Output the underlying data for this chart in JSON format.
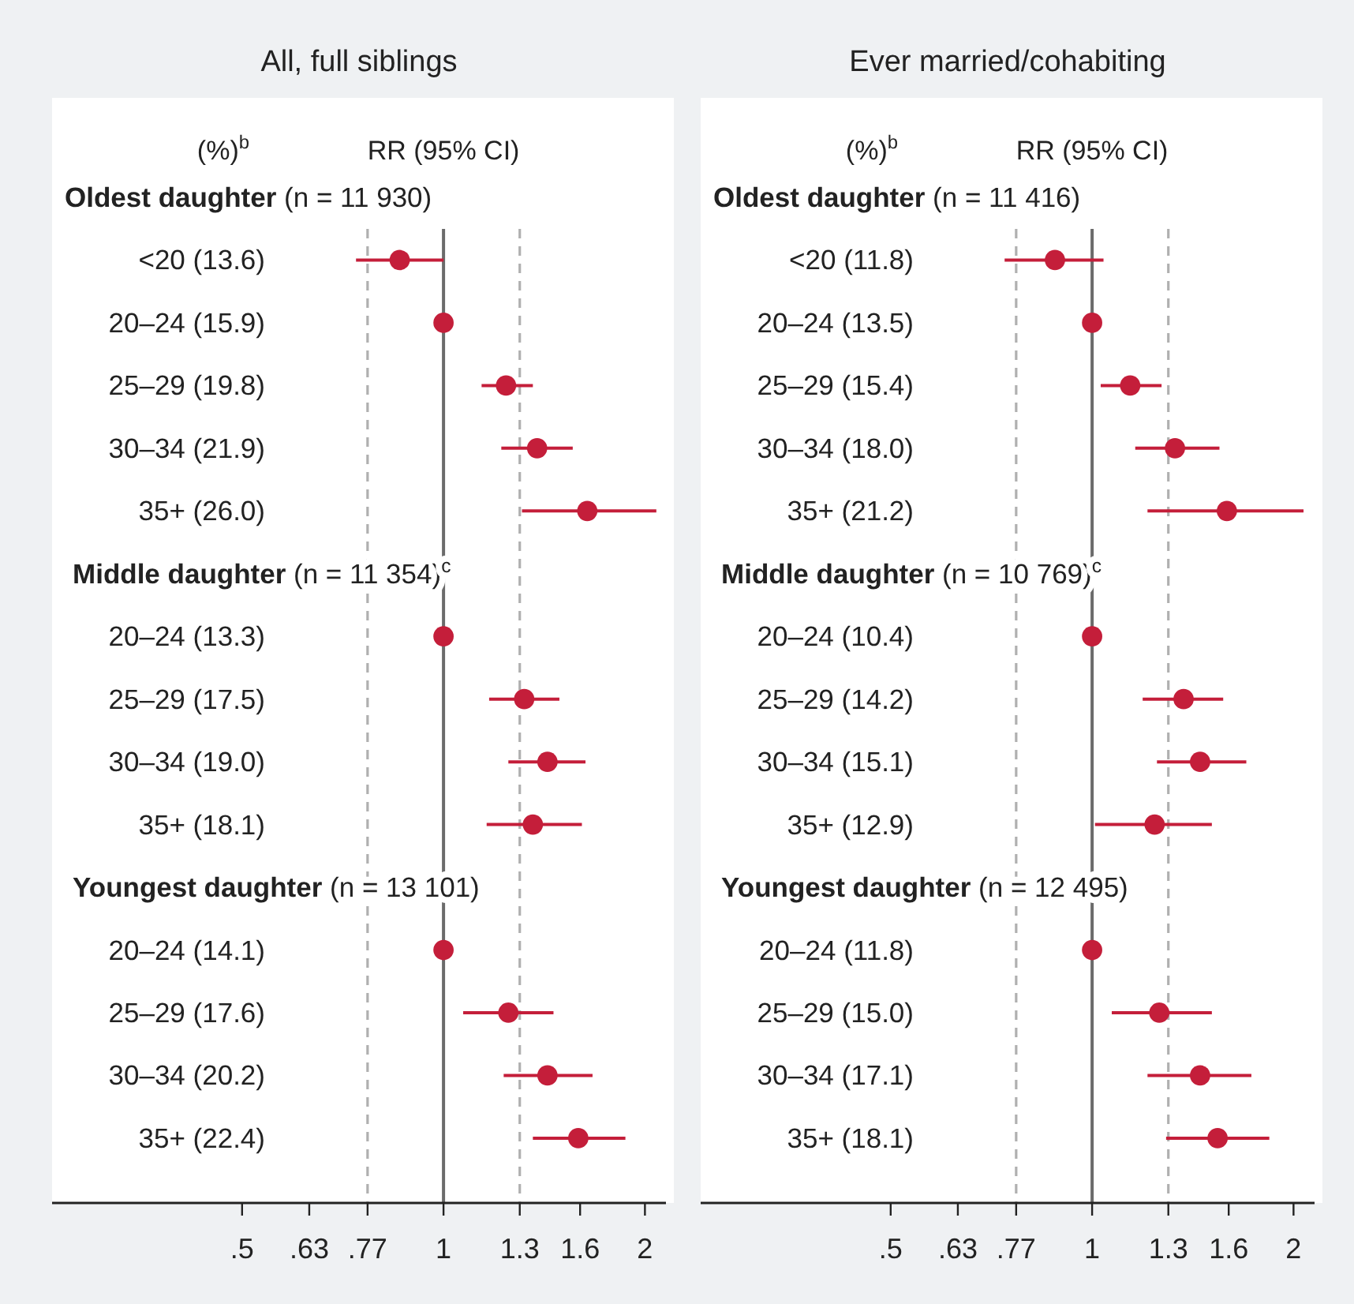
{
  "chart_data": [
    {
      "type": "scatter",
      "orientation": "horizontal",
      "title": "All, full siblings",
      "annotations": [
        "(%)$^{b}$",
        "RR (95% CI)"
      ],
      "log": "x",
      "marker": "circle",
      "xlim": [
        0.26,
        2.15
      ],
      "xticks": [
        {
          "value": 0.5,
          "label": ".5"
        },
        {
          "value": 0.63,
          "label": ".63"
        },
        {
          "value": 0.77,
          "label": ".77"
        },
        1,
        1.3,
        1.6,
        2
      ],
      "categories": [
        "Oldest daughter (n = 11 930)",
        "<20 (13.6)",
        "20–24 (15.9)",
        "25–29 (19.8)",
        "30–34 (21.9)",
        "35+ (26.0)",
        "Middle daughter (n = 11 354)$^{c}$",
        "20–24 (13.3)",
        "25–29 (17.5)",
        "30–34 (19.0)",
        "35+ (18.1)",
        "Youngest daughter (n = 13 101)",
        "20–24 (14.1)",
        "25–29 (17.6)",
        "30–34 (20.2)",
        "35+ (22.4)"
      ],
      "series": [
        {
          "color": "#c41e3a",
          "values": [
            null,
            0.86,
            1,
            1.24,
            1.38,
            1.64,
            null,
            1,
            1.32,
            1.43,
            1.36,
            null,
            1,
            1.25,
            1.43,
            1.59
          ],
          "errors": [
            null,
            [
              0.74,
              1.0
            ],
            null,
            [
              1.14,
              1.36
            ],
            [
              1.22,
              1.56
            ],
            [
              1.31,
              2.08
            ],
            null,
            null,
            [
              1.17,
              1.49
            ],
            [
              1.25,
              1.63
            ],
            [
              1.16,
              1.61
            ],
            null,
            null,
            [
              1.07,
              1.46
            ],
            [
              1.23,
              1.67
            ],
            [
              1.36,
              1.87
            ]
          ]
        }
      ],
      "ref_lines": [
        {
          "axis": "x",
          "value": 1,
          "color": "#6b6b6b",
          "line_style": "solid"
        },
        {
          "axis": "x",
          "value": 0.77,
          "color": "#b0b0b0",
          "line_style": "dashed"
        },
        {
          "axis": "x",
          "value": 1.3,
          "color": "#b0b0b0",
          "line_style": "dashed"
        }
      ]
    },
    {
      "type": "scatter",
      "orientation": "horizontal",
      "title": "Ever married/cohabiting",
      "annotations": [
        "(%)$^{b}$",
        "RR (95% CI)"
      ],
      "log": "x",
      "marker": "circle",
      "xlim": [
        0.26,
        2.15
      ],
      "xticks": [
        {
          "value": 0.5,
          "label": ".5"
        },
        {
          "value": 0.63,
          "label": ".63"
        },
        {
          "value": 0.77,
          "label": ".77"
        },
        1,
        1.3,
        1.6,
        2
      ],
      "categories": [
        "Oldest daughter (n = 11 416)",
        "<20 (11.8)",
        "20–24 (13.5)",
        "25–29 (15.4)",
        "30–34 (18.0)",
        "35+ (21.2)",
        "Middle daughter (n = 10 769)$^{c}$",
        "20–24 (10.4)",
        "25–29 (14.2)",
        "30–34 (15.1)",
        "35+ (12.9)",
        "Youngest daughter (n = 12 495)",
        "20–24 (11.8)",
        "25–29 (15.0)",
        "30–34 (17.1)",
        "35+ (18.1)"
      ],
      "series": [
        {
          "color": "#c41e3a",
          "values": [
            null,
            0.88,
            1,
            1.14,
            1.33,
            1.59,
            null,
            1,
            1.37,
            1.45,
            1.24,
            null,
            1,
            1.26,
            1.45,
            1.54
          ],
          "errors": [
            null,
            [
              0.74,
              1.04
            ],
            null,
            [
              1.03,
              1.27
            ],
            [
              1.16,
              1.55
            ],
            [
              1.21,
              2.07
            ],
            null,
            null,
            [
              1.19,
              1.57
            ],
            [
              1.25,
              1.7
            ],
            [
              1.01,
              1.51
            ],
            null,
            null,
            [
              1.07,
              1.51
            ],
            [
              1.21,
              1.73
            ],
            [
              1.29,
              1.84
            ]
          ]
        }
      ],
      "ref_lines": [
        {
          "axis": "x",
          "value": 1,
          "color": "#6b6b6b",
          "line_style": "solid"
        },
        {
          "axis": "x",
          "value": 0.77,
          "color": "#b0b0b0",
          "line_style": "dashed"
        },
        {
          "axis": "x",
          "value": 1.3,
          "color": "#b0b0b0",
          "line_style": "dashed"
        }
      ]
    }
  ]
}
